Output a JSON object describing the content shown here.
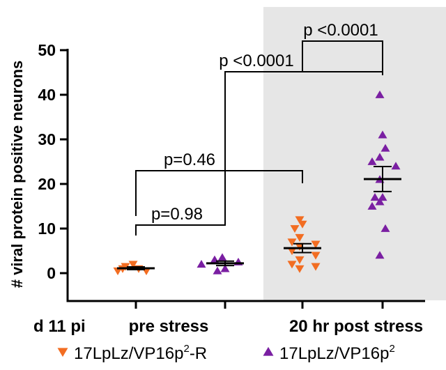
{
  "chart_data": {
    "type": "scatter",
    "ylabel": "# viral protein positive neurons",
    "ylim": [
      0,
      50
    ],
    "yticks": [
      0,
      10,
      20,
      30,
      40,
      50
    ],
    "x_prefix_label": "d 11 pi",
    "group_labels": [
      "pre stress",
      "20 hr post stress"
    ],
    "shaded_group": "20 hr post stress",
    "shade_color": "#e6e6e6",
    "series": [
      {
        "name": "17LpLz/VP16p2-R",
        "legend_base": "17LpLz/VP16p",
        "legend_sup": "2",
        "legend_suffix": "-R",
        "marker": "triangle-down",
        "color": "#f26d22",
        "groups": [
          {
            "group": "pre stress",
            "values": [
              2,
              1.5,
              1,
              1,
              0.5,
              0.5
            ],
            "mean": 1.1,
            "sem": 0.3
          },
          {
            "group": "20 hr post stress",
            "values": [
              12,
              11,
              10,
              8,
              7,
              6.5,
              6,
              5,
              4,
              3,
              2,
              1.5,
              1
            ],
            "mean": 5.6,
            "sem": 1.0
          }
        ]
      },
      {
        "name": "17LpLz/VP16p2",
        "legend_base": "17LpLz/VP16p",
        "legend_sup": "2",
        "legend_suffix": "",
        "marker": "triangle-up",
        "color": "#7a1fa2",
        "groups": [
          {
            "group": "pre stress",
            "values": [
              3.5,
              3,
              2.5,
              2,
              1,
              0.5
            ],
            "mean": 2.2,
            "sem": 0.5
          },
          {
            "group": "20 hr post stress",
            "values": [
              40,
              31,
              28,
              26,
              25,
              24,
              21,
              17,
              17,
              16,
              15,
              10,
              4
            ],
            "mean": 21.1,
            "sem": 2.8
          }
        ]
      }
    ],
    "comparisons": [
      {
        "label": "p=0.98"
      },
      {
        "label": "p=0.46"
      },
      {
        "label": "p <0.0001"
      },
      {
        "label": "p <0.0001"
      }
    ]
  }
}
